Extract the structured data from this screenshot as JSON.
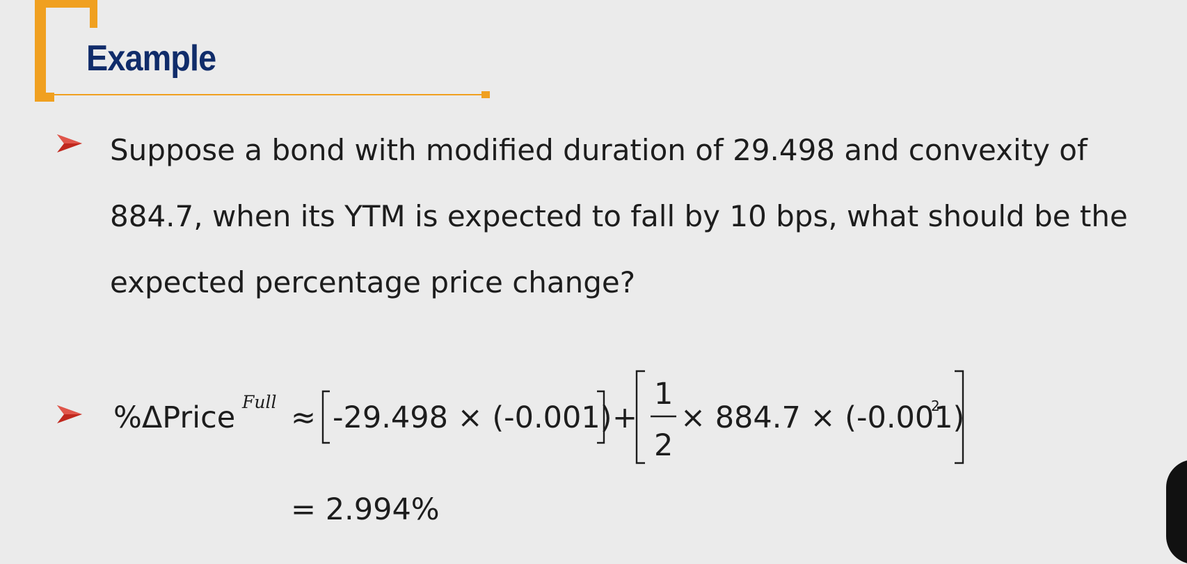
{
  "slide": {
    "title": "Example",
    "question_lines": [
      "Suppose a bond with modified duration of 29.498 and convexity of",
      "884.7, when its YTM is expected to fall by 10 bps, what should be the",
      "expected percentage price change?"
    ],
    "formula": {
      "lhs": "%ΔPrice",
      "lhs_superscript": "Full",
      "approx": "≈",
      "term1": "-29.498 × (-0.001)",
      "plus": "+",
      "fraction_numerator": "1",
      "fraction_denominator": "2",
      "term2": "× 884.7 × (-0.001)",
      "term2_superscript": "2",
      "result": "= 2.994%"
    }
  },
  "colors": {
    "title": "#102c6a",
    "accent_orange": "#f0a020",
    "bullet_red": "#c0281e",
    "text": "#1d1d1d",
    "background": "#ebebeb"
  },
  "icons": {
    "bullet": "arrow-bullet-icon"
  }
}
